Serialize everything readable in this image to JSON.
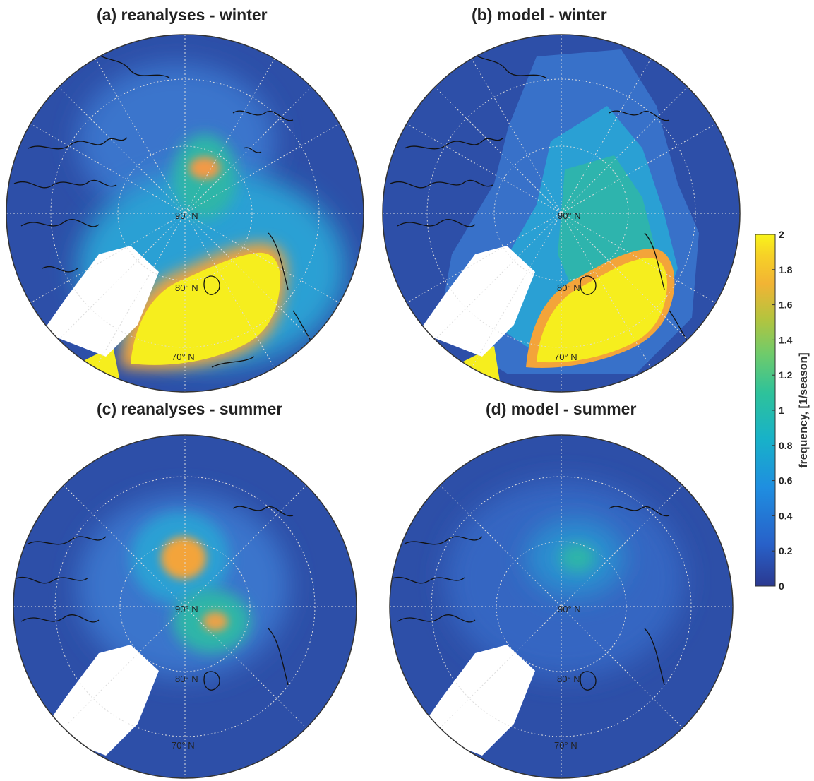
{
  "panels": [
    {
      "title": "(a) reanalyses - winter",
      "labels": {
        "lat90": "90° N",
        "lat80": "80° N",
        "lat70": "70° N"
      }
    },
    {
      "title": "(b) model - winter",
      "labels": {
        "lat90": "90° N",
        "lat80": "80° N",
        "lat70": "70° N"
      }
    },
    {
      "title": "(c) reanalyses - summer",
      "labels": {
        "lat90": "90° N",
        "lat80": "80° N",
        "lat70": "70° N"
      }
    },
    {
      "title": "(d) model - summer",
      "labels": {
        "lat90": "90° N",
        "lat80": "80° N",
        "lat70": "70° N"
      }
    }
  ],
  "colorbar": {
    "label": "frequency, [1/season]",
    "ticks": [
      "0",
      "0.2",
      "0.4",
      "0.6",
      "0.8",
      "1",
      "1.2",
      "1.4",
      "1.6",
      "1.8",
      "2"
    ],
    "min": 0,
    "max": 2,
    "colors": [
      "#2b3990",
      "#2861c9",
      "#1f8ee0",
      "#18b2c8",
      "#2ec29a",
      "#6fcb6b",
      "#b4c43e",
      "#f2b434",
      "#f6d127",
      "#f9f41a"
    ]
  },
  "colors": {
    "ocean_base": "#2d4fa8",
    "low": "#3566c2",
    "mid": "#1e9fd6",
    "teal": "#25b7a6",
    "orange": "#f3a43a",
    "yellow": "#f6ee1e",
    "coast": "#111111",
    "grid": "#dddddd"
  }
}
